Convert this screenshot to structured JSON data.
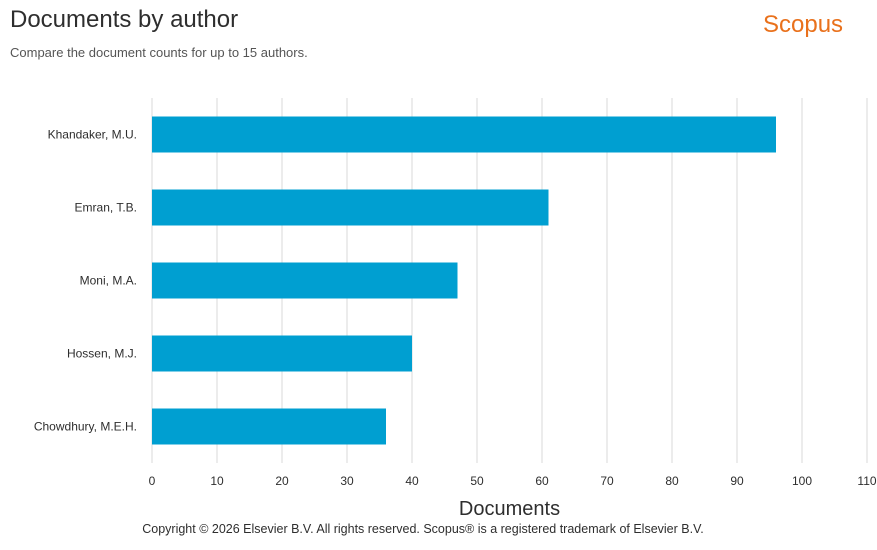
{
  "header": {
    "title": "Documents by author",
    "subtitle": "Compare the document counts for up to 15 authors.",
    "brand": "Scopus"
  },
  "colors": {
    "brand": "#e9711c",
    "bar": "#009fd1",
    "grid": "#d9d9d9",
    "text": "#2e2e2e"
  },
  "chart_data": {
    "type": "bar",
    "orientation": "horizontal",
    "categories": [
      "Khandaker, M.U.",
      "Emran, T.B.",
      "Moni, M.A.",
      "Hossen, M.J.",
      "Chowdhury, M.E.H."
    ],
    "values": [
      96,
      61,
      47,
      40,
      36
    ],
    "xlabel": "Documents",
    "ylabel": "",
    "xlim": [
      0,
      110
    ],
    "xticks": [
      0,
      10,
      20,
      30,
      40,
      50,
      60,
      70,
      80,
      90,
      100,
      110
    ],
    "grid": true
  },
  "footer": {
    "copyright": "Copyright © 2026 Elsevier B.V. All rights reserved. Scopus® is a registered trademark of Elsevier B.V."
  }
}
